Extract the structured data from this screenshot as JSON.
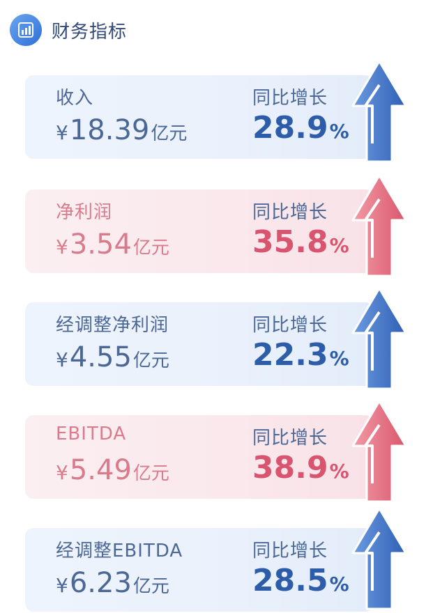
{
  "header": {
    "title": "财务指标",
    "icon": "bar-chart-icon",
    "icon_color": "#3a7be0"
  },
  "colors": {
    "blue_text": "#2d5da8",
    "pink_text": "#d9546e",
    "blue_arrow": "#3a6bc0",
    "pink_arrow": "#e06878"
  },
  "cards": [
    {
      "label": "收入",
      "currency": "¥",
      "value": "18.39",
      "unit": "亿元",
      "yoy_label": "同比增长",
      "yoy_value": "28.9",
      "yoy_unit": "%"
    },
    {
      "label": "净利润",
      "currency": "¥",
      "value": "3.54",
      "unit": "亿元",
      "yoy_label": "同比增长",
      "yoy_value": "35.8",
      "yoy_unit": "%"
    },
    {
      "label": "经调整净利润",
      "currency": "¥",
      "value": "4.55",
      "unit": "亿元",
      "yoy_label": "同比增长",
      "yoy_value": "22.3",
      "yoy_unit": "%"
    },
    {
      "label": "EBITDA",
      "currency": "¥",
      "value": "5.49",
      "unit": "亿元",
      "yoy_label": "同比增长",
      "yoy_value": "38.9",
      "yoy_unit": "%"
    },
    {
      "label": "经调整EBITDA",
      "currency": "¥",
      "value": "6.23",
      "unit": "亿元",
      "yoy_label": "同比增长",
      "yoy_value": "28.5",
      "yoy_unit": "%"
    }
  ]
}
